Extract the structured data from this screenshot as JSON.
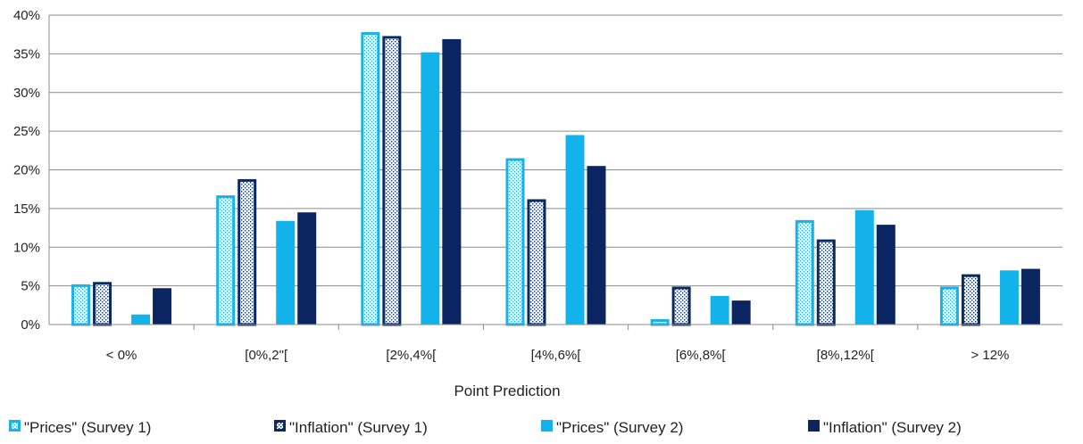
{
  "chart_data": {
    "type": "bar",
    "title": "",
    "xlabel": "Point Prediction",
    "ylabel": "",
    "categories": [
      "< 0%",
      "[0%,2\"[",
      "[2%,4%[",
      "[4%,6%[",
      "[6%,8%[",
      "[8%,12%[",
      "> 12%"
    ],
    "yticks": [
      "0%",
      "5%",
      "10%",
      "15%",
      "20%",
      "25%",
      "30%",
      "35%",
      "40%"
    ],
    "ylim": [
      0,
      40
    ],
    "grid": true,
    "legend_position": "bottom",
    "series": [
      {
        "name": "\"Prices\"  (Survey 1)",
        "values": [
          5.2,
          16.7,
          37.8,
          21.5,
          0.7,
          13.5,
          4.9
        ],
        "color": "#1ab0e8",
        "style": "dotted-outline"
      },
      {
        "name": "\"Inflation\"  (Survey 1)",
        "values": [
          5.5,
          18.8,
          37.3,
          16.2,
          4.9,
          11.0,
          6.5
        ],
        "color": "#0b2a5e",
        "style": "dotted-outline"
      },
      {
        "name": "\"Prices\"  (Survey 2)",
        "values": [
          1.3,
          13.4,
          35.2,
          24.5,
          3.7,
          14.8,
          7.0
        ],
        "color": "#12b3eb",
        "style": "solid"
      },
      {
        "name": "\"Inflation\"  (Survey 2)",
        "values": [
          4.7,
          14.5,
          36.9,
          20.5,
          3.1,
          12.9,
          7.2
        ],
        "color": "#0b2560",
        "style": "solid"
      }
    ]
  }
}
